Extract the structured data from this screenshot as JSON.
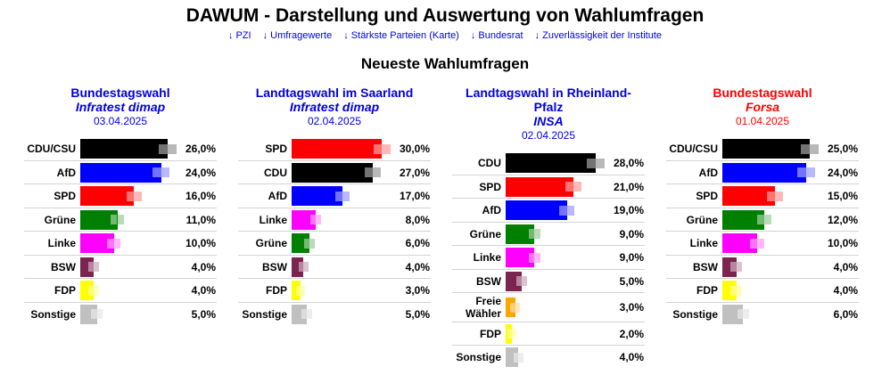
{
  "header": {
    "title": "DAWUM - Darstellung und Auswertung von Wahlumfragen",
    "links": [
      {
        "icon": "arrow-down-icon",
        "label": "PZI"
      },
      {
        "icon": "arrow-down-icon",
        "label": "Umfragewerte"
      },
      {
        "icon": "arrow-down-icon",
        "label": "Stärkste Parteien (Karte)"
      },
      {
        "icon": "arrow-down-icon",
        "label": "Bundesrat"
      },
      {
        "icon": "arrow-down-icon",
        "label": "Zuverlässigkeit der Institute"
      }
    ],
    "link_color": "#0000ee",
    "section_title": "Neueste Wahlumfragen"
  },
  "chart_data": [
    {
      "type": "bar",
      "orientation": "horizontal",
      "title": "Bundestagswahl",
      "institute": "Infratest dimap",
      "date": "03.04.2025",
      "title_color": "#0000dd",
      "categories": [
        "CDU/CSU",
        "AfD",
        "SPD",
        "Grüne",
        "Linke",
        "BSW",
        "FDP",
        "Sonstige"
      ],
      "values": [
        26,
        24,
        16,
        11,
        10,
        4,
        4,
        5
      ],
      "value_labels": [
        "26,0%",
        "24,0%",
        "16,0%",
        "11,0%",
        "10,0%",
        "4,0%",
        "4,0%",
        "5,0%"
      ],
      "error_margin": [
        2.6,
        2.6,
        2.2,
        1.95,
        1.95,
        1.55,
        1.55,
        1.7
      ],
      "colors": [
        "#000000",
        "#0000ff",
        "#ff0000",
        "#008000",
        "#ff00ff",
        "#7b2450",
        "#ffff00",
        "#c0c0c0"
      ],
      "unit": "%",
      "xlim": [
        0,
        30.2
      ],
      "grid": false,
      "legend": "none"
    },
    {
      "type": "bar",
      "orientation": "horizontal",
      "title": "Landtagswahl im Saarland",
      "institute": "Infratest dimap",
      "date": "02.04.2025",
      "title_color": "#0000dd",
      "categories": [
        "SPD",
        "CDU",
        "AfD",
        "Linke",
        "Grüne",
        "BSW",
        "FDP",
        "Sonstige"
      ],
      "values": [
        30,
        27,
        17,
        8,
        6,
        4,
        3,
        5
      ],
      "value_labels": [
        "30,0%",
        "27,0%",
        "17,0%",
        "8,0%",
        "6,0%",
        "4,0%",
        "3,0%",
        "5,0%"
      ],
      "error_margin": [
        2.8,
        2.55,
        2.35,
        1.9,
        1.75,
        1.6,
        1.45,
        1.75
      ],
      "colors": [
        "#ff0000",
        "#000000",
        "#0000ff",
        "#ff00ff",
        "#008000",
        "#7b2450",
        "#ffff00",
        "#c0c0c0"
      ],
      "unit": "%",
      "xlim": [
        0,
        34.7
      ],
      "grid": false,
      "legend": "none"
    },
    {
      "type": "bar",
      "orientation": "horizontal",
      "title": "Landtagswahl in Rheinland-Pfalz",
      "institute": "INSA",
      "date": "02.04.2025",
      "title_color": "#0000dd",
      "categories": [
        "CDU",
        "SPD",
        "AfD",
        "Grüne",
        "Linke",
        "BSW",
        "Freie Wähler",
        "FDP",
        "Sonstige"
      ],
      "values": [
        28,
        21,
        19,
        9,
        9,
        5,
        3,
        2,
        4
      ],
      "value_labels": [
        "28,0%",
        "21,0%",
        "19,0%",
        "9,0%",
        "9,0%",
        "5,0%",
        "3,0%",
        "2,0%",
        "4,0%"
      ],
      "error_margin": [
        2.7,
        2.45,
        2.45,
        1.9,
        1.9,
        1.6,
        1.5,
        1.35,
        1.6
      ],
      "colors": [
        "#000000",
        "#ff0000",
        "#0000ff",
        "#008000",
        "#ff00ff",
        "#7b2450",
        "#ffa500",
        "#ffff00",
        "#c0c0c0"
      ],
      "unit": "%",
      "xlim": [
        0,
        32.4
      ],
      "grid": false,
      "legend": "none"
    },
    {
      "type": "bar",
      "orientation": "horizontal",
      "title": "Bundestagswahl",
      "institute": "Forsa",
      "date": "01.04.2025",
      "title_color": "#ff0000",
      "categories": [
        "CDU/CSU",
        "AfD",
        "SPD",
        "Grüne",
        "Linke",
        "BSW",
        "FDP",
        "Sonstige"
      ],
      "values": [
        25,
        24,
        15,
        12,
        10,
        4,
        4,
        6
      ],
      "value_labels": [
        "25,0%",
        "24,0%",
        "15,0%",
        "12,0%",
        "10,0%",
        "4,0%",
        "4,0%",
        "6,0%"
      ],
      "error_margin": [
        2.6,
        2.5,
        2.25,
        2.0,
        2.0,
        1.6,
        1.6,
        1.75
      ],
      "colors": [
        "#000000",
        "#0000ff",
        "#ff0000",
        "#008000",
        "#ff00ff",
        "#7b2450",
        "#ffff00",
        "#c0c0c0"
      ],
      "unit": "%",
      "xlim": [
        0,
        29.1
      ],
      "grid": false,
      "legend": "none"
    }
  ]
}
